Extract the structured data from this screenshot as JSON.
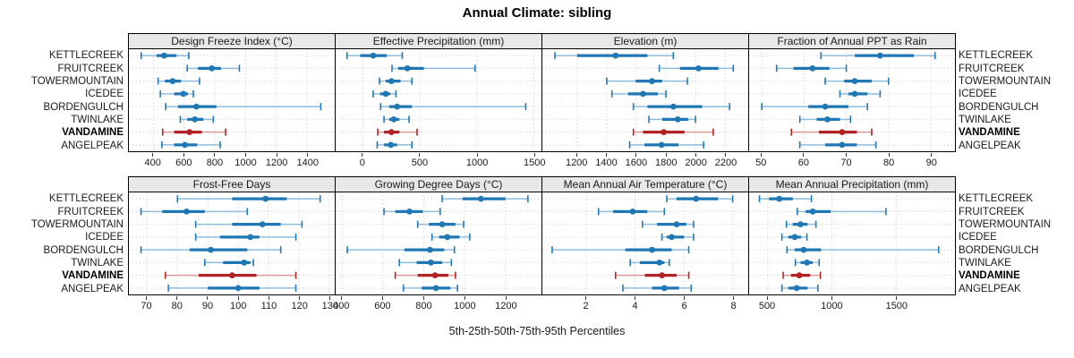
{
  "chart_data": {
    "type": "percentile-dotplot",
    "title": "Annual Climate: sibling",
    "xlabel": "5th-25th-50th-75th-95th Percentiles",
    "percentiles": [
      "5th",
      "25th",
      "50th",
      "75th",
      "95th"
    ],
    "legend_position": "none",
    "grid": "dotted",
    "sites": [
      "KETTLECREEK",
      "FRUITCREEK",
      "TOWERMOUNTAIN",
      "ICEDEE",
      "BORDENGULCH",
      "TWINLAKE",
      "VANDAMINE",
      "ANGELPEAK"
    ],
    "highlight_site": "VANDAMINE",
    "colors": {
      "normal": "#1F77B4",
      "normal_light": "#8FBCDC",
      "highlight": "#B22222",
      "highlight_light": "#DE9A9A",
      "strip_bg": "#E8E8E8"
    },
    "panels": [
      {
        "title": "Design Freeze Index (°C)",
        "xlim": [
          240,
          1575
        ],
        "ticks": [
          400,
          600,
          800,
          1000,
          1200,
          1400
        ],
        "values": [
          [
            320,
            420,
            470,
            550,
            630
          ],
          [
            620,
            690,
            780,
            840,
            960
          ],
          [
            430,
            475,
            525,
            580,
            700
          ],
          [
            445,
            535,
            595,
            625,
            660
          ],
          [
            480,
            560,
            680,
            810,
            1490
          ],
          [
            575,
            620,
            670,
            725,
            790
          ],
          [
            460,
            535,
            635,
            715,
            870
          ],
          [
            455,
            535,
            605,
            685,
            835
          ]
        ]
      },
      {
        "title": "Effective Precipitation (mm)",
        "xlim": [
          -240,
          1560
        ],
        "ticks": [
          0,
          500,
          1000,
          1500
        ],
        "values": [
          [
            -140,
            -25,
            90,
            210,
            345
          ],
          [
            255,
            310,
            390,
            535,
            985
          ],
          [
            145,
            200,
            250,
            330,
            430
          ],
          [
            90,
            150,
            200,
            240,
            290
          ],
          [
            155,
            230,
            300,
            430,
            1430
          ],
          [
            185,
            230,
            270,
            320,
            405
          ],
          [
            130,
            185,
            250,
            320,
            475
          ],
          [
            125,
            185,
            245,
            300,
            430
          ]
        ]
      },
      {
        "title": "Elevation (m)",
        "xlim": [
          965,
          2350
        ],
        "ticks": [
          1200,
          1400,
          1600,
          1800,
          2000,
          2200
        ],
        "values": [
          [
            1050,
            1200,
            1460,
            1675,
            1850
          ],
          [
            1755,
            1895,
            2020,
            2155,
            2255
          ],
          [
            1400,
            1595,
            1705,
            1775,
            1945
          ],
          [
            1435,
            1545,
            1645,
            1745,
            1800
          ],
          [
            1580,
            1675,
            1850,
            2045,
            2230
          ],
          [
            1685,
            1775,
            1880,
            1950,
            2000
          ],
          [
            1580,
            1645,
            1785,
            1925,
            2120
          ],
          [
            1555,
            1655,
            1770,
            1885,
            2055
          ]
        ]
      },
      {
        "title": "Fraction of Annual PPT as Rain",
        "xlim": [
          47,
          95.5
        ],
        "ticks": [
          50,
          60,
          70,
          80,
          90
        ],
        "values": [
          [
            64,
            72,
            78,
            86,
            91
          ],
          [
            53.5,
            57.5,
            62,
            66,
            70
          ],
          [
            65,
            69.5,
            72,
            76,
            80
          ],
          [
            68.5,
            70.5,
            72,
            75,
            78
          ],
          [
            50,
            61,
            65,
            70.5,
            75
          ],
          [
            59,
            63,
            65.5,
            68.5,
            71
          ],
          [
            57,
            63.5,
            69,
            72.5,
            76
          ],
          [
            59,
            65,
            69,
            72.5,
            77
          ]
        ]
      },
      {
        "title": "Frost-Free Days",
        "xlim": [
          64,
          131.5
        ],
        "ticks": [
          70,
          80,
          90,
          100,
          110,
          120,
          130
        ],
        "values": [
          [
            80,
            98,
            109,
            116,
            127
          ],
          [
            68,
            75,
            83,
            89,
            103
          ],
          [
            86,
            98,
            108,
            114,
            121
          ],
          [
            86,
            94,
            104,
            107,
            119
          ],
          [
            68,
            84,
            91,
            103,
            114
          ],
          [
            89,
            95,
            102,
            104,
            105
          ],
          [
            76,
            87,
            98,
            106,
            119
          ],
          [
            77,
            90,
            100,
            107,
            119
          ]
        ]
      },
      {
        "title": "Growing Degree Days (°C)",
        "xlim": [
          368,
          1372
        ],
        "ticks": [
          400,
          600,
          800,
          1000,
          1200
        ],
        "values": [
          [
            890,
            990,
            1080,
            1200,
            1310
          ],
          [
            605,
            660,
            730,
            795,
            880
          ],
          [
            770,
            825,
            890,
            955,
            995
          ],
          [
            840,
            875,
            915,
            975,
            1025
          ],
          [
            425,
            705,
            830,
            900,
            950
          ],
          [
            680,
            765,
            835,
            890,
            935
          ],
          [
            660,
            770,
            855,
            920,
            955
          ],
          [
            700,
            790,
            860,
            930,
            965
          ]
        ]
      },
      {
        "title": "Mean Annual Air Temperature (°C)",
        "xlim": [
          0.2,
          8.6
        ],
        "ticks": [
          2,
          4,
          6,
          8
        ],
        "values": [
          [
            5.3,
            5.7,
            6.5,
            7.4,
            8.0
          ],
          [
            2.5,
            3.1,
            3.9,
            4.5,
            5.2
          ],
          [
            4.3,
            4.9,
            5.7,
            6.1,
            6.4
          ],
          [
            5.1,
            5.3,
            5.5,
            6.0,
            6.4
          ],
          [
            0.6,
            3.6,
            4.7,
            5.5,
            6.2
          ],
          [
            3.8,
            4.2,
            5.0,
            5.2,
            5.4
          ],
          [
            3.2,
            4.4,
            5.1,
            5.7,
            6.2
          ],
          [
            3.5,
            4.7,
            5.2,
            5.8,
            6.3
          ]
        ]
      },
      {
        "title": "Mean Annual Precipitation (mm)",
        "xlim": [
          355,
          1950
        ],
        "ticks": [
          500,
          1000,
          1500
        ],
        "values": [
          [
            435,
            510,
            590,
            695,
            840
          ],
          [
            730,
            795,
            850,
            990,
            1420
          ],
          [
            645,
            695,
            755,
            810,
            875
          ],
          [
            610,
            660,
            710,
            760,
            805
          ],
          [
            650,
            710,
            780,
            915,
            1830
          ],
          [
            715,
            755,
            805,
            850,
            900
          ],
          [
            620,
            680,
            745,
            830,
            910
          ],
          [
            610,
            660,
            725,
            810,
            890
          ]
        ]
      }
    ]
  }
}
